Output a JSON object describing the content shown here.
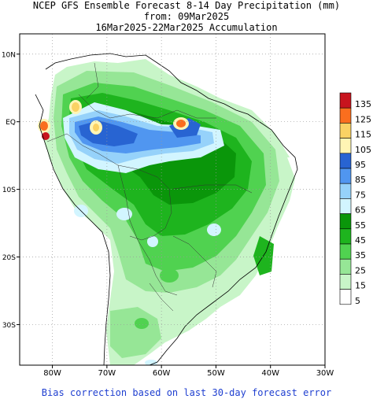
{
  "title": {
    "line1": "NCEP GFS Ensemble Forecast 8-14 Day Precipitation (mm)",
    "line2": "from: 09Mar2025",
    "line3": "16Mar2025-22Mar2025 Accumulation"
  },
  "footer": "Bias correction based on last 30-day forecast error",
  "axes": {
    "lon_labels": [
      "80W",
      "70W",
      "60W",
      "50W",
      "40W",
      "30W"
    ],
    "lon_values": [
      -80,
      -70,
      -60,
      -50,
      -40,
      -30
    ],
    "lat_labels": [
      "10N",
      "EQ",
      "10S",
      "20S",
      "30S"
    ],
    "lat_values": [
      10,
      0,
      -10,
      -20,
      -30
    ],
    "lon_range": [
      -86,
      -30
    ],
    "lat_range": [
      -36,
      13
    ],
    "grid": true
  },
  "legend": {
    "levels": [
      {
        "label": "135",
        "color": "#c8141e"
      },
      {
        "label": "125",
        "color": "#fa6e1e"
      },
      {
        "label": "115",
        "color": "#fad264"
      },
      {
        "label": "105",
        "color": "#fff5b4"
      },
      {
        "label": "95",
        "color": "#2864d2"
      },
      {
        "label": "85",
        "color": "#5096f0"
      },
      {
        "label": "75",
        "color": "#96d2fa"
      },
      {
        "label": "65",
        "color": "#d2f5ff"
      },
      {
        "label": "55",
        "color": "#0a960a"
      },
      {
        "label": "45",
        "color": "#1eb41e"
      },
      {
        "label": "35",
        "color": "#50d250"
      },
      {
        "label": "25",
        "color": "#96e696"
      },
      {
        "label": "15",
        "color": "#c8f5c8"
      },
      {
        "label": "5",
        "color": "#ffffff"
      }
    ]
  }
}
